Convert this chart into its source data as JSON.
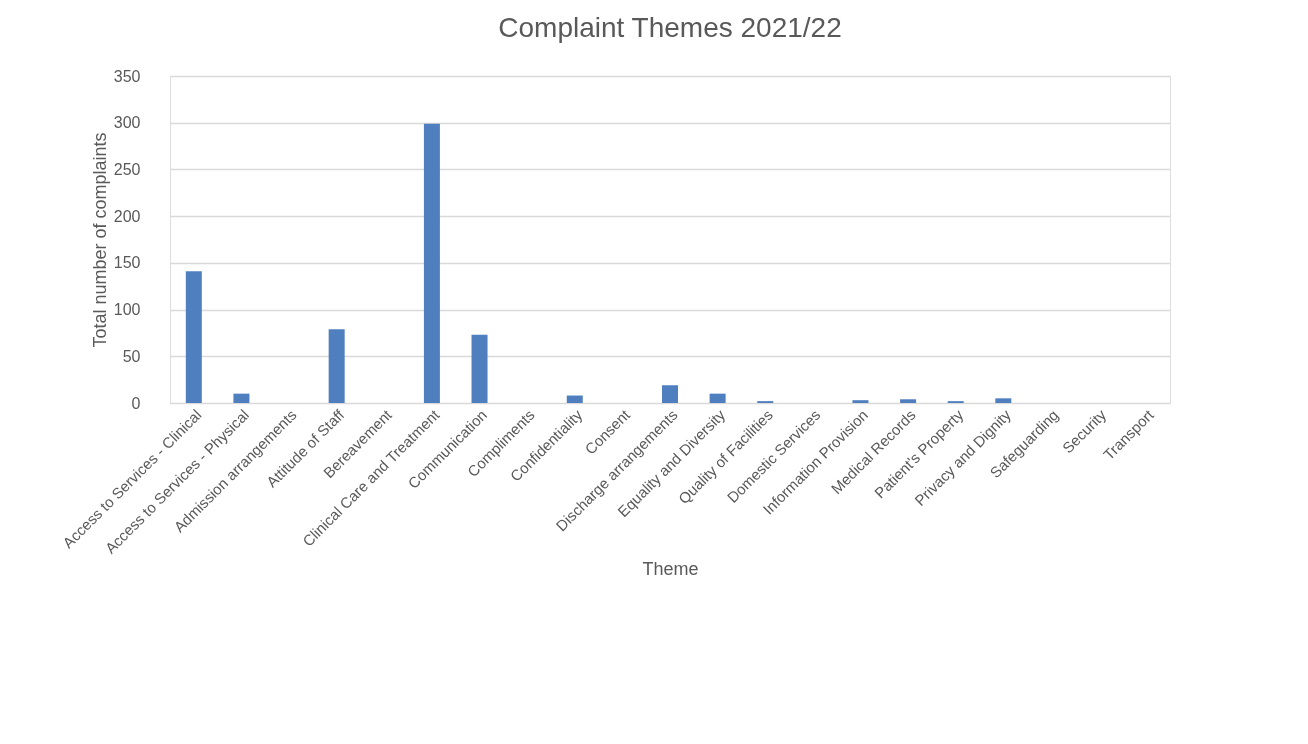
{
  "chart_data": {
    "type": "bar",
    "title": "Complaint Themes 2021/22",
    "xlabel": "Theme",
    "ylabel": "Total number of complaints",
    "categories": [
      "Access to Services - Clinical",
      "Access to Services - Physical",
      "Admission arrangements",
      "Attitude of Staff",
      "Bereavement",
      "Clinical Care and Treatment",
      "Communication",
      "Compliments",
      "Confidentiality",
      "Consent",
      "Discharge arrangements",
      "Equality and Diversity",
      "Quality of Facilities",
      "Domestic Services",
      "Information Provision",
      "Medical Records",
      "Patient's Property",
      "Privacy and Dignity",
      "Safeguarding",
      "Security",
      "Transport"
    ],
    "values": [
      141,
      10,
      0,
      79,
      0,
      299,
      73,
      0,
      8,
      0,
      19,
      10,
      2,
      0,
      3,
      4,
      2,
      5,
      0,
      0,
      0
    ],
    "color": "#4f7fbf",
    "ylim": [
      0,
      350
    ],
    "yticks": [
      0,
      50,
      100,
      150,
      200,
      250,
      300,
      350
    ],
    "grid": "y"
  }
}
